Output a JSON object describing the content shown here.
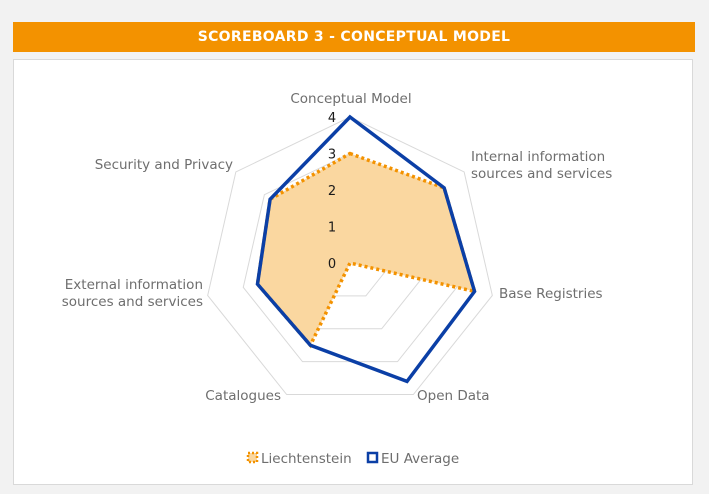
{
  "header": {
    "title": "SCOREBOARD 3 - CONCEPTUAL MODEL"
  },
  "colors": {
    "banner": "#f39200",
    "series_fill": "#fad7a0",
    "liechtenstein": "#f39200",
    "eu_average": "#0b3fa6",
    "grid": "#d9d9d9"
  },
  "chart_data": {
    "type": "radar",
    "title": "",
    "axes": [
      [
        "Conceptual Model"
      ],
      [
        "Internal information",
        "sources and services"
      ],
      [
        "Base Registries"
      ],
      [
        "Open Data"
      ],
      [
        "Catalogues"
      ],
      [
        "External information",
        "sources and services"
      ],
      [
        "Security and Privacy"
      ]
    ],
    "ticks": [
      "0",
      "1",
      "2",
      "3",
      "4"
    ],
    "range": [
      0,
      4
    ],
    "grid": true,
    "legend_position": "bottom",
    "series": [
      {
        "name": "Liechtenstein",
        "values": [
          3.0,
          3.3,
          3.5,
          0.0,
          2.5,
          2.6,
          2.8
        ]
      },
      {
        "name": "EU Average",
        "values": [
          4.0,
          3.3,
          3.5,
          3.6,
          2.5,
          2.6,
          2.8
        ]
      }
    ]
  }
}
